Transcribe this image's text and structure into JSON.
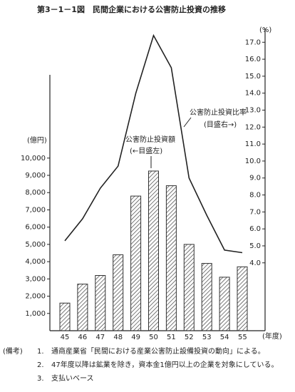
{
  "chart_data": {
    "type": "bar-line",
    "title": "第3－1－1図　民間企業における公害防止投資の推移",
    "y_label": "(億円)",
    "y2_label": "(%)",
    "x_label": "(年度)",
    "categories": [
      "45",
      "46",
      "47",
      "48",
      "49",
      "50",
      "51",
      "52",
      "53",
      "54",
      "55"
    ],
    "series": [
      {
        "name": "公害防止投資額",
        "type": "bar",
        "color": "#333333",
        "values": [
          1600,
          2700,
          3200,
          4400,
          7800,
          9250,
          8400,
          5000,
          3900,
          3100,
          3700
        ]
      },
      {
        "name": "公害防止投資比率",
        "type": "line",
        "axis": "y2",
        "color": "#222222",
        "values": [
          5.3,
          6.6,
          8.4,
          9.7,
          14.0,
          17.4,
          15.5,
          9.0,
          6.8,
          4.75,
          4.6
        ]
      }
    ],
    "annotations": [
      "(←目盛左)",
      "(目盛右→)"
    ],
    "ylim": [
      0,
      17300
    ],
    "yticks": [
      {
        "value": 1000,
        "label": "1,000"
      },
      {
        "value": 2000,
        "label": "2,000"
      },
      {
        "value": 3000,
        "label": "3,000"
      },
      {
        "value": 4000,
        "label": "4,000"
      },
      {
        "value": 5000,
        "label": "5,000"
      },
      {
        "value": 6000,
        "label": "6,000"
      },
      {
        "value": 7000,
        "label": "7,000"
      },
      {
        "value": 8000,
        "label": "8,000"
      },
      {
        "value": 9000,
        "label": "9,000"
      },
      {
        "value": 10000,
        "label": "10,000"
      }
    ],
    "y2lim": [
      0,
      17.6
    ],
    "y2ticks": [
      {
        "value": 4,
        "label": "4.0"
      },
      {
        "value": 5,
        "label": "5.0"
      },
      {
        "value": 6,
        "label": "6.0"
      },
      {
        "value": 7,
        "label": "7.0"
      },
      {
        "value": 8,
        "label": "8.0"
      },
      {
        "value": 9,
        "label": "9.0"
      },
      {
        "value": 10,
        "label": "10.0"
      },
      {
        "value": 11,
        "label": "11.0"
      },
      {
        "value": 12,
        "label": "12.0"
      },
      {
        "value": 13,
        "label": "13.0"
      },
      {
        "value": 14,
        "label": "14.0"
      },
      {
        "value": 15,
        "label": "15.0"
      },
      {
        "value": 16,
        "label": "16.0"
      },
      {
        "value": 17,
        "label": "17.0"
      }
    ],
    "notes_label": "(備考)",
    "notes": [
      {
        "number": "1.",
        "text": "通商産業省「民間における産業公害防止設備投資の動向」による。"
      },
      {
        "number": "2.",
        "text": "47年度以降は鉱業を除き，資本金1億円以上の企業を対象にしている。"
      },
      {
        "number": "3.",
        "text": "支払いベース"
      }
    ]
  }
}
